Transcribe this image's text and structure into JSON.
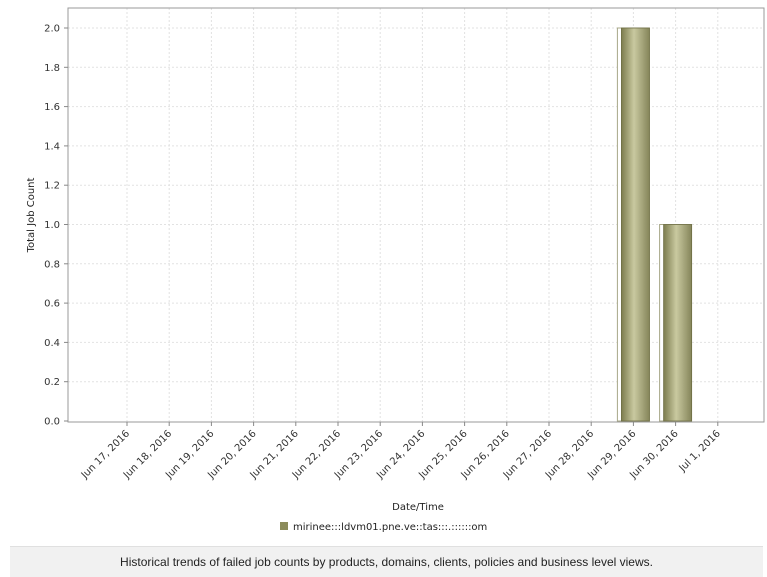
{
  "chart_data": {
    "type": "bar",
    "xlabel": "Date/Time",
    "ylabel": "Total Job Count",
    "ylim": [
      0,
      2.0
    ],
    "yticks": [
      "0.0",
      "0.2",
      "0.4",
      "0.6",
      "0.8",
      "1.0",
      "1.2",
      "1.4",
      "1.6",
      "1.8",
      "2.0"
    ],
    "categories": [
      "Jun 17, 2016",
      "Jun 18, 2016",
      "Jun 19, 2016",
      "Jun 20, 2016",
      "Jun 21, 2016",
      "Jun 22, 2016",
      "Jun 23, 2016",
      "Jun 24, 2016",
      "Jun 25, 2016",
      "Jun 26, 2016",
      "Jun 27, 2016",
      "Jun 28, 2016",
      "Jun 29, 2016",
      "Jun 30, 2016",
      "Jul 1, 2016"
    ],
    "series": [
      {
        "name": "mirinee:::ldvm01.pne.ve::tas:::.::::::om",
        "color": "#8b8b5a",
        "values": [
          0,
          0,
          0,
          0,
          0,
          0,
          0,
          0,
          0,
          0,
          0,
          0,
          2,
          1,
          0
        ]
      }
    ],
    "grid": true,
    "legend_position": "bottom"
  },
  "caption": "Historical trends of failed job counts by products, domains, clients, policies and business level views."
}
